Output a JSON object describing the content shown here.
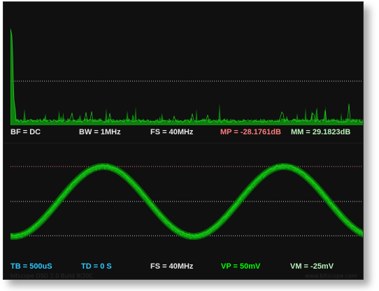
{
  "window": {
    "title": "bitscope DSO 2.0 Build 9/20C",
    "watermark": "www.bitscope.com"
  },
  "spectrum": {
    "readouts": {
      "bf": "BF = DC",
      "bw": "BW = 1MHz",
      "fs": "FS = 40MHz",
      "mp": "MP = -28.1761dB",
      "mm": "MM = 29.1823dB"
    }
  },
  "waveform": {
    "readouts": {
      "tb": "TB = 500uS",
      "td": "TD = 0 S",
      "fs": "FS = 40MHz",
      "vp": "VP = 50mV",
      "vm": "VM = -25mV"
    }
  },
  "colors": {
    "trace_green": "#12b912",
    "bright_green": "#2aff2a",
    "dark_green": "#086b08",
    "dotted_white": "#c9c9c9",
    "dotted_pink": "#e07a7a",
    "readout_white": "#e6e6e6",
    "readout_pink": "#ff7b7b",
    "readout_lightgreen": "#b8f0b8",
    "readout_cyan": "#2fc8ff",
    "readout_green": "#00ff00"
  }
}
